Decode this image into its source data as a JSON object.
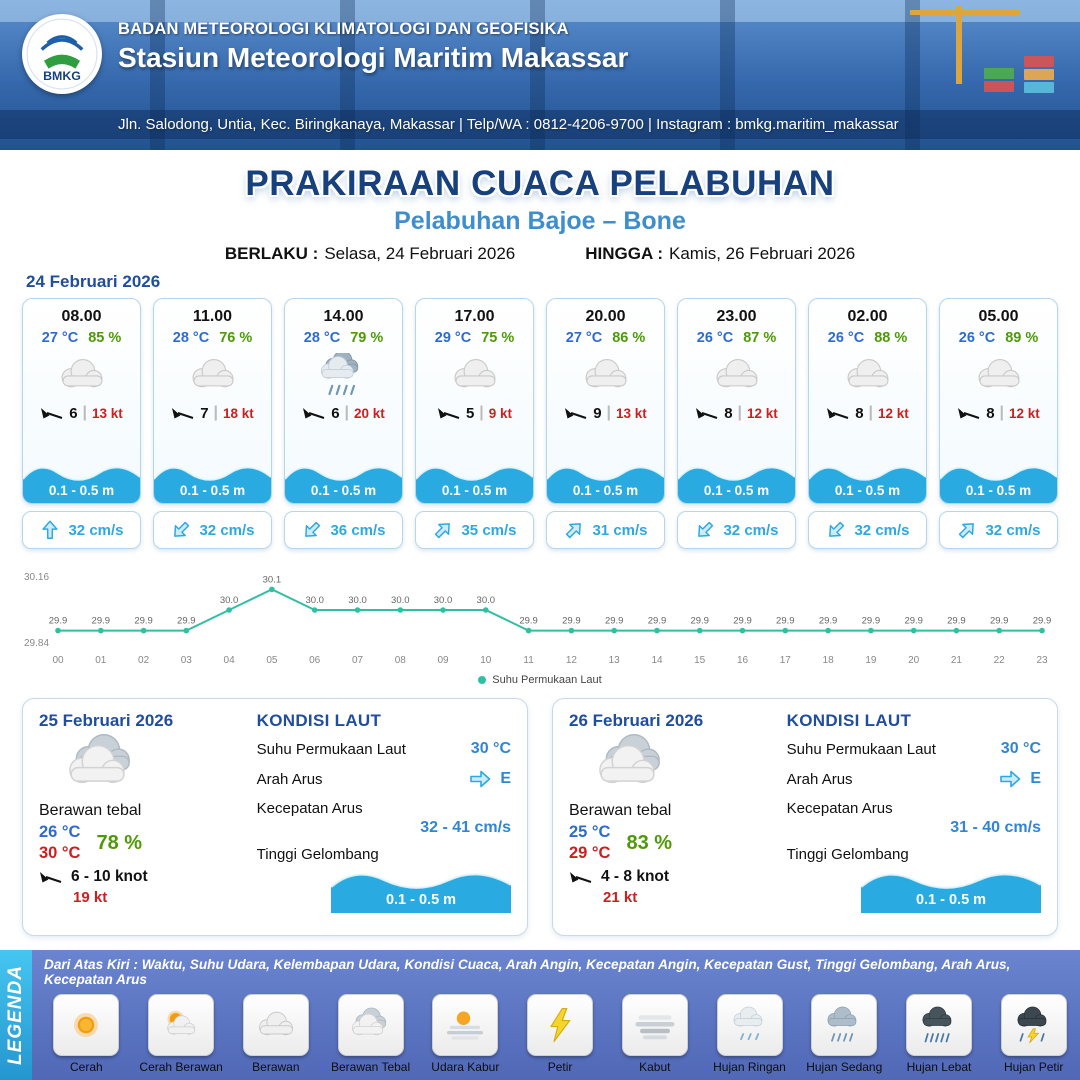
{
  "header": {
    "logo_text": "BMKG",
    "agency": "BADAN METEOROLOGI KLIMATOLOGI DAN GEOFISIKA",
    "station": "Stasiun Meteorologi Maritim Makassar",
    "address": "Jln. Salodong, Untia, Kec. Biringkanaya, Makassar | Telp/WA : 0812-4206-9700 | Instagram : bmkg.maritim_makassar"
  },
  "title": {
    "main": "PRAKIRAAN CUACA PELABUHAN",
    "subtitle": "Pelabuhan Bajoe – Bone",
    "valid_from_label": "BERLAKU :",
    "valid_from": "Selasa, 24 Februari 2026",
    "valid_to_label": "HINGGA :",
    "valid_to": "Kamis, 26 Februari 2026"
  },
  "hourly": {
    "date": "24 Februari 2026",
    "cards": [
      {
        "time": "08.00",
        "temp": "27 °C",
        "humidity": "85 %",
        "icon": "berawan",
        "wind": "6",
        "gust": "13 kt",
        "wave": "0.1 - 0.5 m",
        "current_dir": "N",
        "current_speed": "32 cm/s"
      },
      {
        "time": "11.00",
        "temp": "28 °C",
        "humidity": "76 %",
        "icon": "berawan",
        "wind": "7",
        "gust": "18 kt",
        "wave": "0.1 - 0.5 m",
        "current_dir": "SW",
        "current_speed": "32 cm/s"
      },
      {
        "time": "14.00",
        "temp": "28 °C",
        "humidity": "79 %",
        "icon": "hujan",
        "wind": "6",
        "gust": "20 kt",
        "wave": "0.1 - 0.5 m",
        "current_dir": "SW",
        "current_speed": "36 cm/s"
      },
      {
        "time": "17.00",
        "temp": "29 °C",
        "humidity": "75 %",
        "icon": "berawan",
        "wind": "5",
        "gust": "9 kt",
        "wave": "0.1 - 0.5 m",
        "current_dir": "NE",
        "current_speed": "35 cm/s"
      },
      {
        "time": "20.00",
        "temp": "27 °C",
        "humidity": "86 %",
        "icon": "berawan",
        "wind": "9",
        "gust": "13 kt",
        "wave": "0.1 - 0.5 m",
        "current_dir": "NE",
        "current_speed": "31 cm/s"
      },
      {
        "time": "23.00",
        "temp": "26 °C",
        "humidity": "87 %",
        "icon": "berawan",
        "wind": "8",
        "gust": "12 kt",
        "wave": "0.1 - 0.5 m",
        "current_dir": "SW",
        "current_speed": "32 cm/s"
      },
      {
        "time": "02.00",
        "temp": "26 °C",
        "humidity": "88 %",
        "icon": "berawan",
        "wind": "8",
        "gust": "12 kt",
        "wave": "0.1 - 0.5 m",
        "current_dir": "SW",
        "current_speed": "32 cm/s"
      },
      {
        "time": "05.00",
        "temp": "26 °C",
        "humidity": "89 %",
        "icon": "berawan",
        "wind": "8",
        "gust": "12 kt",
        "wave": "0.1 - 0.5 m",
        "current_dir": "NE",
        "current_speed": "32 cm/s"
      }
    ]
  },
  "chart_data": {
    "type": "line",
    "x": [
      "00",
      "01",
      "02",
      "03",
      "04",
      "05",
      "06",
      "07",
      "08",
      "09",
      "10",
      "11",
      "12",
      "13",
      "14",
      "15",
      "16",
      "17",
      "18",
      "19",
      "20",
      "21",
      "22",
      "23"
    ],
    "series": [
      {
        "name": "Suhu Permukaan Laut",
        "values": [
          29.9,
          29.9,
          29.9,
          29.9,
          30.0,
          30.1,
          30.0,
          30.0,
          30.0,
          30.0,
          30.0,
          29.9,
          29.9,
          29.9,
          29.9,
          29.9,
          29.9,
          29.9,
          29.9,
          29.9,
          29.9,
          29.9,
          29.9,
          29.9
        ]
      }
    ],
    "ylim": [
      29.84,
      30.16
    ],
    "line_color": "#2fc0a2",
    "grid": false,
    "legend_position": "bottom"
  },
  "daily": {
    "cards": [
      {
        "date": "25 Februari 2026",
        "icon": "berawan-tebal",
        "condition": "Berawan tebal",
        "temp_min": "26 °C",
        "temp_max": "30 °C",
        "humidity": "78 %",
        "wind": "6  - 10 knot",
        "gust": "19 kt",
        "sea": {
          "heading": "KONDISI LAUT",
          "sst_label": "Suhu Permukaan Laut",
          "sst": "30 °C",
          "dir_label": "Arah Arus",
          "dir": "E",
          "speed_label": "Kecepatan Arus",
          "speed": "32  - 41 cm/s",
          "wave_label": "Tinggi Gelombang",
          "wave": "0.1 - 0.5 m"
        }
      },
      {
        "date": "26 Februari 2026",
        "icon": "berawan-tebal",
        "condition": "Berawan tebal",
        "temp_min": "25 °C",
        "temp_max": "29 °C",
        "humidity": "83 %",
        "wind": "4  - 8 knot",
        "gust": "21 kt",
        "sea": {
          "heading": "KONDISI LAUT",
          "sst_label": "Suhu Permukaan Laut",
          "sst": "30 °C",
          "dir_label": "Arah Arus",
          "dir": "E",
          "speed_label": "Kecepatan Arus",
          "speed": "31  - 40 cm/s",
          "wave_label": "Tinggi Gelombang",
          "wave": "0.1 - 0.5 m"
        }
      }
    ]
  },
  "legend": {
    "title": "LEGENDA",
    "description": "Dari Atas Kiri : Waktu, Suhu Udara, Kelembapan Udara, Kondisi Cuaca, Arah Angin, Kecepatan Angin, Kecepatan Gust, Tinggi Gelombang, Arah Arus, Kecepatan Arus",
    "items": [
      {
        "label": "Cerah",
        "icon": "cerah"
      },
      {
        "label": "Cerah Berawan",
        "icon": "cerah-berawan"
      },
      {
        "label": "Berawan",
        "icon": "berawan"
      },
      {
        "label": "Berawan Tebal",
        "icon": "berawan-tebal"
      },
      {
        "label": "Udara Kabur",
        "icon": "udara-kabur"
      },
      {
        "label": "Petir",
        "icon": "petir"
      },
      {
        "label": "Kabut",
        "icon": "kabut"
      },
      {
        "label": "Hujan Ringan",
        "icon": "hujan-ringan"
      },
      {
        "label": "Hujan Sedang",
        "icon": "hujan-sedang"
      },
      {
        "label": "Hujan Lebat",
        "icon": "hujan-lebat"
      },
      {
        "label": "Hujan Petir",
        "icon": "hujan-petir"
      }
    ]
  },
  "colors": {
    "header_blue": "#2c5ea8",
    "accent_blue": "#29abe2",
    "navy": "#16407e",
    "subtitle_blue": "#3f8ecb",
    "teal": "#2fc0a2",
    "red": "#cc1f1f",
    "green": "#4e9a06",
    "temp_blue": "#2e6bd0",
    "legend_bg": "#5b74c4"
  }
}
